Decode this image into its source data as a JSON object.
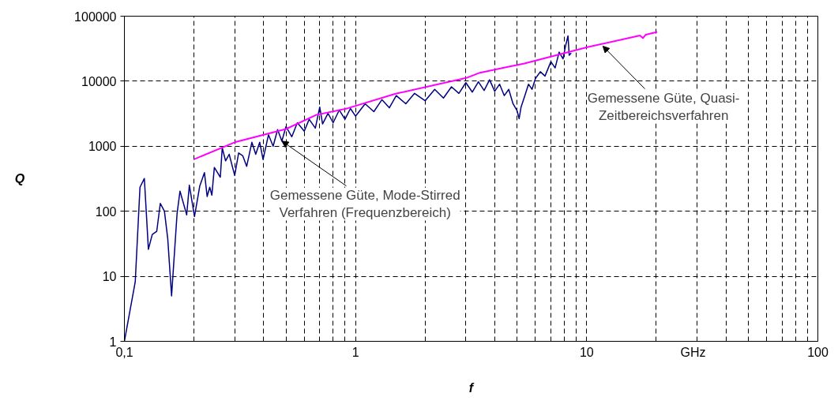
{
  "chart_data": {
    "type": "line",
    "xlabel": "f",
    "ylabel": "Q",
    "log": "xy",
    "grid": true,
    "marker": "none",
    "line_style": "solid",
    "xlim": [
      0.1,
      100
    ],
    "ylim": [
      1,
      100000
    ],
    "xticks": [
      {
        "value": 0.1,
        "label": "0,1"
      },
      1,
      10,
      100
    ],
    "yticks": [
      1,
      10,
      100,
      1000,
      10000,
      100000
    ],
    "series": [
      {
        "color": "#000080",
        "x": [
          0.1,
          0.1114,
          0.1168,
          0.122,
          0.127,
          0.132,
          0.138,
          0.143,
          0.149,
          0.154,
          0.16,
          0.169,
          0.174,
          0.186,
          0.191,
          0.201,
          0.212,
          0.222,
          0.228,
          0.234,
          0.239,
          0.245,
          0.26,
          0.265,
          0.274,
          0.284,
          0.3,
          0.312,
          0.325,
          0.338,
          0.356,
          0.37,
          0.385,
          0.398,
          0.42,
          0.44,
          0.46,
          0.48,
          0.5,
          0.53,
          0.56,
          0.6,
          0.63,
          0.67,
          0.7,
          0.72,
          0.76,
          0.8,
          0.85,
          0.9,
          0.95,
          1.0,
          1.1,
          1.2,
          1.3,
          1.4,
          1.5,
          1.65,
          1.8,
          2.0,
          2.2,
          2.4,
          2.6,
          2.8,
          3.0,
          3.2,
          3.4,
          3.6,
          3.8,
          4.0,
          4.2,
          4.4,
          4.6,
          4.8,
          5.0,
          5.1,
          5.2,
          5.4,
          5.6,
          5.8,
          6.0,
          6.3,
          6.6,
          7.0,
          7.3,
          7.6,
          7.9,
          8.1,
          8.3,
          8.4,
          8.57
        ],
        "values": [
          1,
          8.2,
          234,
          319,
          26,
          44,
          49,
          132,
          100,
          38,
          5,
          92,
          204,
          88,
          252,
          83,
          246,
          392,
          169,
          234,
          177,
          472,
          334,
          948,
          596,
          752,
          355,
          789,
          716,
          490,
          1150,
          752,
          1150,
          624,
          1500,
          1000,
          1800,
          1200,
          2000,
          1400,
          2300,
          1700,
          2600,
          1900,
          4000,
          2200,
          3200,
          2300,
          3600,
          2600,
          3800,
          2900,
          4500,
          3400,
          5200,
          3900,
          6000,
          4500,
          6500,
          5000,
          7500,
          5500,
          8200,
          6500,
          9500,
          6800,
          9800,
          7200,
          10500,
          7000,
          9000,
          6000,
          7500,
          4500,
          3500,
          2650,
          4000,
          6000,
          9000,
          7500,
          11000,
          14000,
          12000,
          20000,
          16000,
          28000,
          22000,
          35000,
          49700,
          25000,
          27100
        ]
      },
      {
        "color": "#ff00ff",
        "x": [
          0.2,
          0.3,
          0.5,
          0.676,
          0.926,
          1.49,
          3.01,
          3.45,
          4.47,
          5.37,
          10.07,
          15.7,
          17.0,
          17.5,
          18.0,
          20.2
        ],
        "values": [
          630,
          1150,
          1840,
          3030,
          3840,
          6410,
          11200,
          13500,
          16400,
          18700,
          33400,
          47400,
          50500,
          46000,
          52000,
          57200
        ]
      }
    ],
    "annotations": [
      {
        "text": "Gemessene Güte, Mode-Stirred\nVerfahren (Frequenzbereich)",
        "x": 0.48,
        "y": 1200
      },
      {
        "text": "Gemessene Güte, Quasi-\nZeitbereichsverfahren",
        "x": 11.75,
        "y": 34600
      },
      "GHz"
    ]
  }
}
